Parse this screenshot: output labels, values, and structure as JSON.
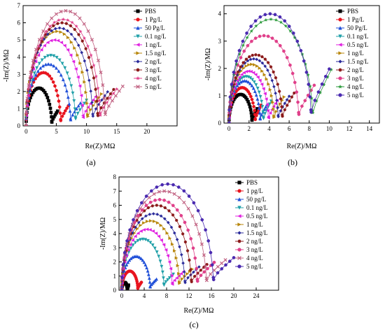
{
  "chart_data": [
    {
      "type": "scatter",
      "panel_label": "(a)",
      "xlabel": "Re(Z)/MΩ",
      "ylabel": "-Im(Z)/MΩ",
      "xlim": [
        -0.5,
        25
      ],
      "ylim": [
        0,
        7
      ],
      "xticks": [
        0,
        5,
        10,
        15,
        20
      ],
      "yticks": [
        0,
        1,
        2,
        3,
        4,
        5,
        6,
        7
      ],
      "legend_position": "top-right",
      "series": [
        {
          "name": "PBS",
          "color": "#000000",
          "marker": "square",
          "xmax": 5.2,
          "ymax": 2.2,
          "tail": 0.6
        },
        {
          "name": "1 Pg/L",
          "color": "#e8141e",
          "marker": "circle",
          "xmax": 7.0,
          "ymax": 3.1,
          "tail": 0.8
        },
        {
          "name": "50 Pg/L",
          "color": "#1f4fd8",
          "marker": "triangle-up",
          "xmax": 9.0,
          "ymax": 3.6,
          "tail": 0.9
        },
        {
          "name": "0.1 ng/L",
          "color": "#1fa0a8",
          "marker": "triangle-down",
          "xmax": 10.0,
          "ymax": 4.1,
          "tail": 1.0
        },
        {
          "name": "1 ng/L",
          "color": "#e020e0",
          "marker": "triangle-left",
          "xmax": 11.5,
          "ymax": 5.0,
          "tail": 1.1
        },
        {
          "name": "1.5 ng/L",
          "color": "#b8860b",
          "marker": "triangle-right",
          "xmax": 12.5,
          "ymax": 5.5,
          "tail": 1.2
        },
        {
          "name": "2 ng/L",
          "color": "#2a2a9a",
          "marker": "diamond",
          "xmax": 13.5,
          "ymax": 5.7,
          "tail": 1.3
        },
        {
          "name": "3 ng/L",
          "color": "#8b1a1a",
          "marker": "hexagon",
          "xmax": 14.5,
          "ymax": 6.0,
          "tail": 1.4
        },
        {
          "name": "4 ng/L",
          "color": "#e0408a",
          "marker": "star",
          "xmax": 15.0,
          "ymax": 6.2,
          "tail": 1.4
        },
        {
          "name": "5 ng/L",
          "color": "#c06080",
          "marker": "cross",
          "xmax": 16.0,
          "ymax": 6.7,
          "tail": 1.5
        }
      ]
    },
    {
      "type": "scatter",
      "panel_label": "(b)",
      "xlabel": "Re(Z)/MΩ",
      "ylabel": "-Im(Z)/MΩ",
      "xlim": [
        -0.5,
        15
      ],
      "ylim": [
        0,
        4.3
      ],
      "xticks": [
        0,
        2,
        4,
        6,
        8,
        10,
        12,
        14
      ],
      "yticks": [
        0,
        1,
        2,
        3,
        4
      ],
      "legend_position": "top-right",
      "series": [
        {
          "name": "PBS",
          "color": "#000000",
          "marker": "square",
          "xmax": 2.8,
          "ymax": 1.05,
          "tail": 0.4
        },
        {
          "name": "1 Pg/L",
          "color": "#e8141e",
          "marker": "circle",
          "xmax": 3.2,
          "ymax": 1.3,
          "tail": 0.5
        },
        {
          "name": "50 Pg/L",
          "color": "#1f4fd8",
          "marker": "triangle-up",
          "xmax": 3.8,
          "ymax": 1.55,
          "tail": 0.5
        },
        {
          "name": "0.1 ng/L",
          "color": "#1fa0a8",
          "marker": "triangle-down",
          "xmax": 4.2,
          "ymax": 1.7,
          "tail": 0.6
        },
        {
          "name": "0.5 ng/L",
          "color": "#e020e0",
          "marker": "triangle-left",
          "xmax": 4.8,
          "ymax": 1.9,
          "tail": 0.6
        },
        {
          "name": "1 ng/L",
          "color": "#b8860b",
          "marker": "triangle-right",
          "xmax": 5.5,
          "ymax": 2.15,
          "tail": 0.7
        },
        {
          "name": "1.5 ng/L",
          "color": "#2a2a9a",
          "marker": "diamond",
          "xmax": 6.0,
          "ymax": 2.35,
          "tail": 0.7
        },
        {
          "name": "2 ng/L",
          "color": "#8b1a1a",
          "marker": "hexagon",
          "xmax": 6.5,
          "ymax": 2.5,
          "tail": 0.8
        },
        {
          "name": "3 ng/L",
          "color": "#e0408a",
          "marker": "circle",
          "xmax": 8.5,
          "ymax": 3.2,
          "tail": 1.0
        },
        {
          "name": "4 ng/L",
          "color": "#2a9a3a",
          "marker": "star",
          "xmax": 10.2,
          "ymax": 3.8,
          "tail": 1.5
        },
        {
          "name": "5 ng/L",
          "color": "#4a2ab0",
          "marker": "circle",
          "xmax": 10.0,
          "ymax": 4.0,
          "tail": 1.5
        }
      ]
    },
    {
      "type": "scatter",
      "panel_label": "(c)",
      "xlabel": "Re(Z)/MΩ",
      "ylabel": "-Im(Z)/MΩ",
      "xlim": [
        -0.5,
        28
      ],
      "ylim": [
        0,
        8
      ],
      "xticks": [
        0,
        4,
        8,
        12,
        16,
        20,
        24
      ],
      "yticks": [
        0,
        1,
        2,
        3,
        4,
        5,
        6,
        7,
        8
      ],
      "legend_position": "top-right",
      "series": [
        {
          "name": "PBS",
          "color": "#000000",
          "marker": "square",
          "xmax": 1.2,
          "ymax": 0.55,
          "tail": 0.3
        },
        {
          "name": "1 pg/L",
          "color": "#e8141e",
          "marker": "circle",
          "xmax": 3.5,
          "ymax": 1.35,
          "tail": 0.4
        },
        {
          "name": "50 pg/L",
          "color": "#1f4fd8",
          "marker": "triangle-up",
          "xmax": 6.2,
          "ymax": 2.4,
          "tail": 0.5
        },
        {
          "name": "0.1 ng/L",
          "color": "#1fa0a8",
          "marker": "triangle-down",
          "xmax": 9.2,
          "ymax": 3.6,
          "tail": 0.7
        },
        {
          "name": "0.5 ng/L",
          "color": "#e020e0",
          "marker": "triangle-left",
          "xmax": 11.0,
          "ymax": 4.3,
          "tail": 0.8
        },
        {
          "name": "1 ng/L",
          "color": "#b8860b",
          "marker": "triangle-right",
          "xmax": 12.6,
          "ymax": 4.9,
          "tail": 0.9
        },
        {
          "name": "1.5 ng/L",
          "color": "#2a2a9a",
          "marker": "diamond",
          "xmax": 13.8,
          "ymax": 5.4,
          "tail": 1.0
        },
        {
          "name": "2 ng/L",
          "color": "#8b1a1a",
          "marker": "hexagon",
          "xmax": 15.2,
          "ymax": 6.0,
          "tail": 1.1
        },
        {
          "name": "3 ng/L",
          "color": "#e0408a",
          "marker": "circle",
          "xmax": 16.5,
          "ymax": 6.4,
          "tail": 1.2
        },
        {
          "name": "4 ng/L",
          "color": "#c06080",
          "marker": "cross",
          "xmax": 18.5,
          "ymax": 7.0,
          "tail": 1.3
        },
        {
          "name": "5 ng/L",
          "color": "#4a2ab0",
          "marker": "circle",
          "xmax": 20.0,
          "ymax": 7.5,
          "tail": 1.4
        }
      ]
    }
  ]
}
